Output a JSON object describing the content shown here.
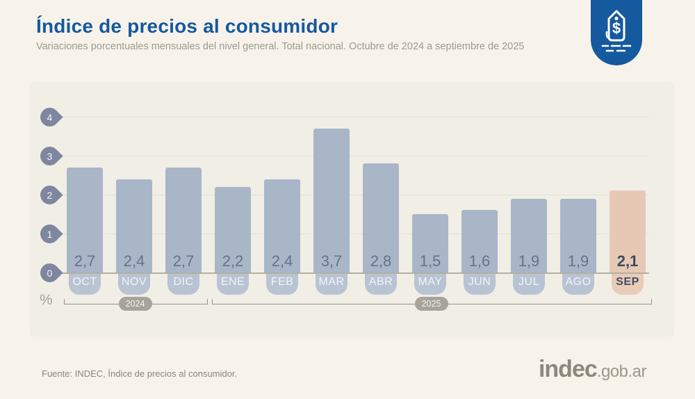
{
  "header": {
    "title": "Índice de precios al consumidor",
    "subtitle": "Variaciones porcentuales mensuales del nivel general. Total nacional. Octubre de 2024 a septiembre de 2025",
    "accent_color": "#15599e"
  },
  "chart_data": {
    "type": "bar",
    "title": "Índice de precios al consumidor",
    "subtitle": "Variaciones porcentuales mensuales del nivel general. Total nacional. Octubre de 2024 a septiembre de 2025",
    "categories": [
      "OCT",
      "NOV",
      "DIC",
      "ENE",
      "FEB",
      "MAR",
      "ABR",
      "MAY",
      "JUN",
      "JUL",
      "AGO",
      "SEP"
    ],
    "values": [
      2.7,
      2.4,
      2.7,
      2.2,
      2.4,
      3.7,
      2.8,
      1.5,
      1.6,
      1.9,
      1.9,
      2.1
    ],
    "value_labels": [
      "2,7",
      "2,4",
      "2,7",
      "2,2",
      "2,4",
      "3,7",
      "2,8",
      "1,5",
      "1,6",
      "1,9",
      "1,9",
      "2,1"
    ],
    "highlight_index": 11,
    "y_ticks": [
      0,
      1,
      2,
      3,
      4
    ],
    "ylim": [
      0,
      4
    ],
    "unit_label": "%",
    "grid": true,
    "legend": "none",
    "year_groups": [
      {
        "label": "2024",
        "from": 0,
        "to": 2
      },
      {
        "label": "2025",
        "from": 3,
        "to": 11
      }
    ],
    "colors": {
      "bar": "#a8b6c8",
      "bar_highlight": "#e6c9b5",
      "tab": "#b8c4d3",
      "tab_highlight": "#e9ccb8",
      "tick_marker": "#7f86a0"
    }
  },
  "footer": {
    "source": "Fuente: INDEC, Índice de precios al consumidor.",
    "logo_main": "indec",
    "logo_suffix": ".gob.ar"
  }
}
